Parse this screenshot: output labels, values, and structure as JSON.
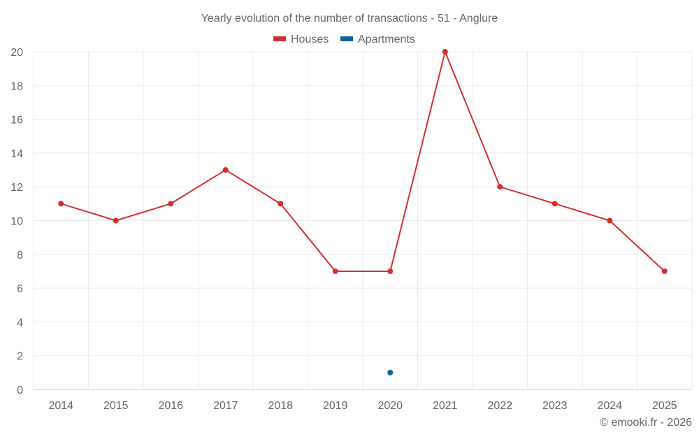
{
  "chart_data": {
    "type": "line",
    "title": "Yearly evolution of the number of transactions - 51 - Anglure",
    "categories": [
      "2014",
      "2015",
      "2016",
      "2017",
      "2018",
      "2019",
      "2020",
      "2021",
      "2022",
      "2023",
      "2024",
      "2025"
    ],
    "series": [
      {
        "name": "Houses",
        "color": "#d32f2f",
        "values": [
          11,
          10,
          11,
          13,
          11,
          7,
          7,
          20,
          12,
          11,
          10,
          7
        ]
      },
      {
        "name": "Apartments",
        "color": "#0d6396",
        "values": [
          null,
          null,
          null,
          null,
          null,
          null,
          1,
          null,
          null,
          null,
          null,
          null
        ]
      }
    ],
    "ylim": [
      0,
      20
    ],
    "yticks": [
      0,
      2,
      4,
      6,
      8,
      10,
      12,
      14,
      16,
      18,
      20
    ],
    "xlabel": "",
    "ylabel": "",
    "grid": true,
    "legend_position": "top-center"
  },
  "credit": "© emooki.fr - 2026"
}
